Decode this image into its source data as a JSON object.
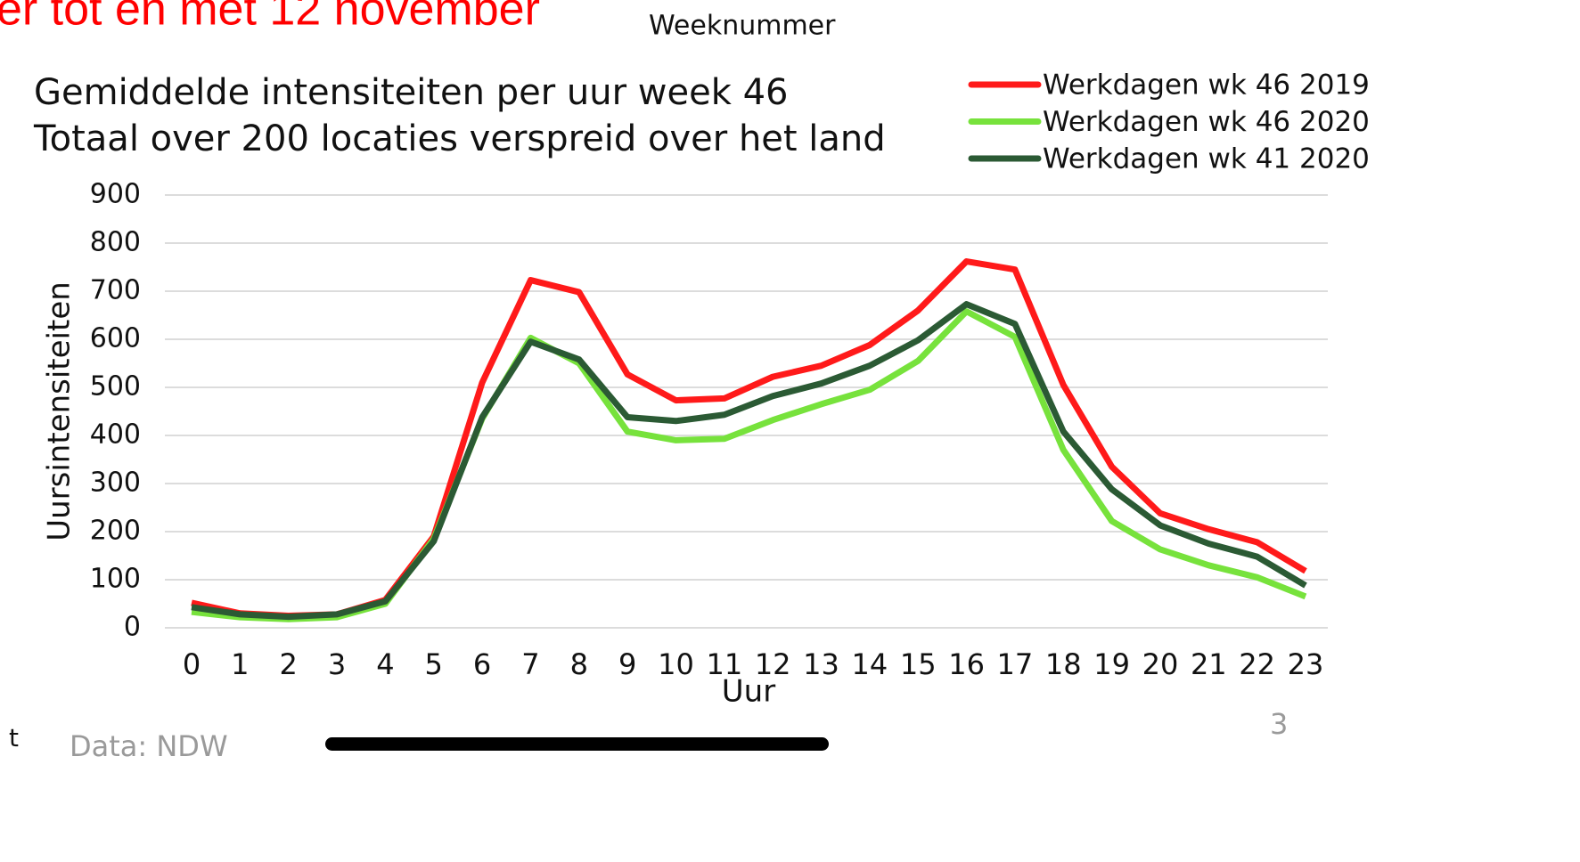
{
  "page": {
    "heading_fragment": "er tot en met 12 november",
    "top_label": "Weeknummer",
    "left_fragment": "t",
    "page_number": "3"
  },
  "chart_data": {
    "type": "line",
    "title": "Gemiddelde intensiteiten per uur week 46",
    "subtitle": "Totaal over 200 locaties verspreid over het land",
    "x_label": "Uur",
    "y_label": "Uursintensiteiten",
    "source": "Data: NDW",
    "categories": [
      "0",
      "1",
      "2",
      "3",
      "4",
      "5",
      "6",
      "7",
      "8",
      "9",
      "10",
      "11",
      "12",
      "13",
      "14",
      "15",
      "16",
      "17",
      "18",
      "19",
      "20",
      "21",
      "22",
      "23"
    ],
    "series": [
      {
        "name": "Werkdagen wk 46 2019",
        "color": "#ff1a1a",
        "values": [
          52,
          30,
          25,
          28,
          58,
          190,
          510,
          723,
          698,
          527,
          473,
          477,
          522,
          545,
          588,
          660,
          762,
          745,
          505,
          335,
          238,
          205,
          178,
          118
        ]
      },
      {
        "name": "Werkdagen wk 46 2020",
        "color": "#77e23c",
        "values": [
          33,
          22,
          18,
          22,
          50,
          185,
          435,
          603,
          550,
          408,
          390,
          393,
          432,
          465,
          495,
          555,
          658,
          605,
          370,
          222,
          163,
          130,
          105,
          65
        ]
      },
      {
        "name": "Werkdagen wk 41 2020",
        "color": "#2b5a34",
        "values": [
          43,
          28,
          23,
          28,
          55,
          180,
          438,
          595,
          558,
          438,
          430,
          443,
          482,
          508,
          545,
          598,
          673,
          632,
          408,
          288,
          213,
          175,
          148,
          88
        ]
      }
    ],
    "ylim": [
      0,
      900
    ],
    "yticks": [
      0,
      100,
      200,
      300,
      400,
      500,
      600,
      700,
      800,
      900
    ],
    "grid": true,
    "legend": "top-right"
  }
}
